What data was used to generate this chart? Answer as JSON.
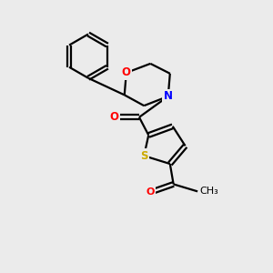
{
  "background_color": "#ebebeb",
  "bond_color": "#000000",
  "atom_colors": {
    "O": "#ff0000",
    "N": "#0000ff",
    "S": "#ccaa00",
    "C": "#000000"
  },
  "line_width": 1.6,
  "font_size": 8.5,
  "fig_width": 3.0,
  "fig_height": 3.0,
  "dpi": 100
}
